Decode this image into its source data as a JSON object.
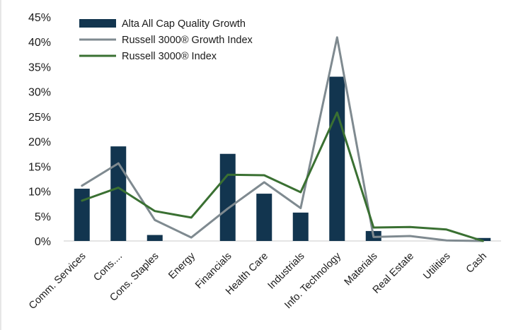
{
  "chart_data": {
    "type": "bar",
    "categories": [
      "Comm. Services",
      "Cons....",
      "Cons. Staples",
      "Energy",
      "Financials",
      "Health Care",
      "Industrials",
      "Info. Technology",
      "Materials",
      "Real Estate",
      "Utilities",
      "Cash"
    ],
    "series": [
      {
        "name": "Alta All Cap Quality Growth",
        "kind": "bar",
        "color": "#12354f",
        "values": [
          10.5,
          19.0,
          1.2,
          0.0,
          17.5,
          9.5,
          5.7,
          33.0,
          2.0,
          0.0,
          0.0,
          0.6
        ]
      },
      {
        "name": "Russell 3000® Growth Index",
        "kind": "line",
        "color": "#7f8a90",
        "values": [
          11.1,
          15.6,
          4.2,
          0.7,
          6.5,
          11.8,
          6.6,
          40.9,
          0.8,
          1.0,
          0.1,
          0.0
        ]
      },
      {
        "name": "Russell 3000® Index",
        "kind": "line",
        "color": "#3a7032",
        "values": [
          8.1,
          10.7,
          6.0,
          4.7,
          13.3,
          13.2,
          9.8,
          25.8,
          2.7,
          2.8,
          2.3,
          0.0
        ]
      }
    ],
    "y_ticks": [
      "0%",
      "5%",
      "10%",
      "15%",
      "20%",
      "25%",
      "30%",
      "35%",
      "40%",
      "45%"
    ],
    "ylim": [
      0,
      45
    ],
    "grid": false,
    "legend": "top-left"
  }
}
